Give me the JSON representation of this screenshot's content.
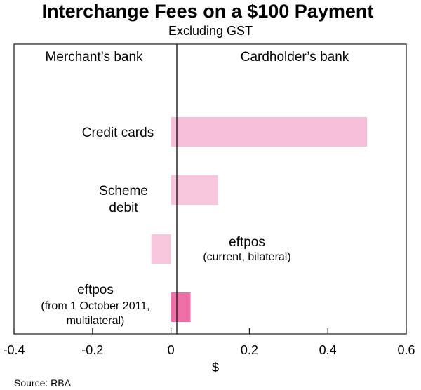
{
  "chart_data": {
    "type": "bar",
    "orientation": "horizontal",
    "title": "Interchange Fees on a $100 Payment",
    "subtitle": "Excluding GST",
    "left_panel_label": "Merchant’s bank",
    "right_panel_label": "Cardholder’s bank",
    "xlabel": "$",
    "xlim": [
      -0.4,
      0.6
    ],
    "xticks": [
      "-0.4",
      "-0.2",
      "0",
      "0.2",
      "0.4",
      "0.6"
    ],
    "xtick_values": [
      -0.4,
      -0.2,
      0,
      0.2,
      0.4,
      0.6
    ],
    "grid": false,
    "source": "Source: RBA",
    "categories": [
      {
        "lines": [
          "Credit cards"
        ],
        "small_lines": [],
        "value": 0.5,
        "color": "#f7bfd9"
      },
      {
        "lines": [
          "Scheme",
          "debit"
        ],
        "small_lines": [],
        "value": 0.12,
        "color": "#f7c6dd"
      },
      {
        "lines": [
          "eftpos"
        ],
        "small_lines": [
          "(current, bilateral)"
        ],
        "value": -0.05,
        "color": "#f7c6dd"
      },
      {
        "lines": [
          "eftpos"
        ],
        "small_lines": [
          "(from 1 October 2011,",
          "multilateral)"
        ],
        "value": 0.05,
        "color": "#ee6fa6"
      }
    ]
  }
}
